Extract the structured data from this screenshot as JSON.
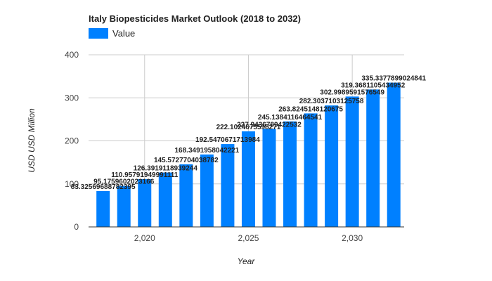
{
  "chart_data": {
    "type": "bar",
    "title": "Italy Biopesticides Market Outlook (2018 to 2032)",
    "xlabel": "Year",
    "ylabel": "USD USD Million",
    "ylim": [
      0,
      400
    ],
    "yticks": [
      0,
      100,
      200,
      300,
      400
    ],
    "xticks": [
      {
        "value": 2020,
        "label": "2,020"
      },
      {
        "value": 2025,
        "label": "2,025"
      },
      {
        "value": 2030,
        "label": "2,030"
      }
    ],
    "grid": true,
    "legend": "top-left",
    "colors": {
      "bar": "#0080ff",
      "grid": "#cccccc",
      "axis": "#333333"
    },
    "series": [
      {
        "name": "Value",
        "x": [
          2018,
          2019,
          2020,
          2021,
          2022,
          2023,
          2024,
          2025,
          2026,
          2027,
          2028,
          2029,
          2030,
          2031,
          2032
        ],
        "values": [
          83.3256968878239,
          95.1759602023166,
          110.957919499911,
          126.391911893924,
          145.572770403878,
          168.349195804222,
          192.547067171398,
          222.102467559827,
          227.943678942253,
          245.138411646454,
          263.824514812067,
          282.303710312575,
          302.998959157654,
          319.368110543495,
          335.3377899024841
        ],
        "labels": [
          "83.32569688782395",
          "95.1759602023166",
          "110.95791949991111",
          "126.3919118939244",
          "145.5727704038782",
          "168.3491958042221",
          "192.5470671713984",
          "222.1024675598271",
          "227.9436789422532",
          "245.1384116464541",
          "263.8245148120675",
          "282.3037103125758",
          "302.9989591576549",
          "319.3681105434952",
          "335.3377899024841"
        ]
      }
    ]
  }
}
